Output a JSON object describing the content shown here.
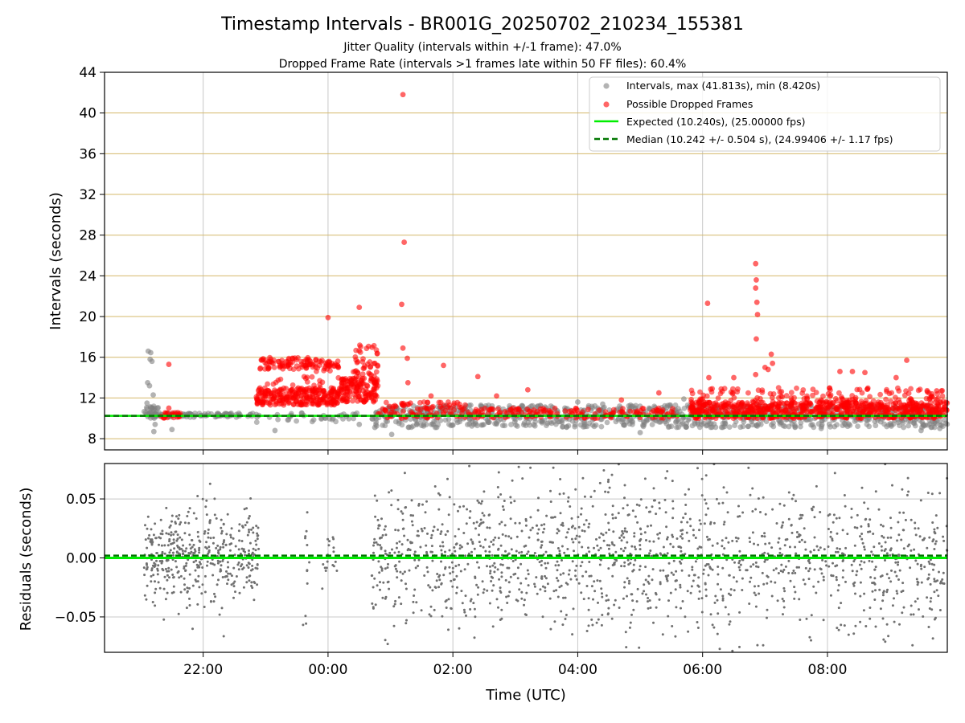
{
  "figure": {
    "title": "Timestamp Intervals - BR001G_20250702_210234_155381",
    "subtitle_1": "Jitter Quality (intervals within +/-1 frame): 47.0%",
    "subtitle_2": "Dropped Frame Rate (intervals >1 frames late within 50 FF files): 60.4%"
  },
  "colors": {
    "intervals": "#808080",
    "dropped": "#ff0000",
    "expected": "#00ee00",
    "median": "#007700",
    "hgrid": "#d4b86a",
    "vgrid": "#c8c8c8",
    "residual_points": "#707070"
  },
  "chart_data": [
    {
      "type": "scatter",
      "ylabel": "Intervals (seconds)",
      "x_range_hours": [
        20.42,
        33.92
      ],
      "ylim": [
        6.9,
        44
      ],
      "yticks": [
        8,
        12,
        16,
        20,
        24,
        28,
        32,
        36,
        40,
        44
      ],
      "ytick_labels": [
        "8",
        "12",
        "16",
        "20",
        "24",
        "28",
        "32",
        "36",
        "40",
        "44"
      ],
      "xtick_hours": [
        22,
        24,
        26,
        28,
        30,
        32
      ],
      "grid": "horizontal lines at y ticks, vertical lines at x ticks",
      "legend_position": "top-right",
      "legend": [
        "Intervals, max (41.813s), min (8.420s)",
        "Possible Dropped Frames",
        "Expected (10.240s), (25.00000 fps)",
        "Median (10.242 +/- 0.504 s), (24.99406 +/- 1.17 fps)"
      ],
      "expected_y": 10.24,
      "median_y": 10.242,
      "outlier_points": [
        {
          "x": 21.12,
          "y": 16.6
        },
        {
          "x": 21.16,
          "y": 16.45
        },
        {
          "x": 21.15,
          "y": 15.8
        },
        {
          "x": 21.18,
          "y": 15.6
        },
        {
          "x": 21.11,
          "y": 13.5
        },
        {
          "x": 21.14,
          "y": 13.2
        },
        {
          "x": 21.2,
          "y": 12.3
        },
        {
          "x": 21.1,
          "y": 11.5
        },
        {
          "x": 21.23,
          "y": 9.4
        },
        {
          "x": 21.21,
          "y": 8.7
        },
        {
          "x": 21.5,
          "y": 8.9
        },
        {
          "x": 23.15,
          "y": 8.8
        },
        {
          "x": 24.5,
          "y": 9.4
        },
        {
          "x": 24.75,
          "y": 9.1
        },
        {
          "x": 25.02,
          "y": 8.42
        },
        {
          "x": 25.5,
          "y": 9.3
        },
        {
          "x": 26.8,
          "y": 9.3
        },
        {
          "x": 28.0,
          "y": 11.6
        },
        {
          "x": 28.4,
          "y": 11.4
        },
        {
          "x": 29.0,
          "y": 8.6
        },
        {
          "x": 29.7,
          "y": 11.9
        },
        {
          "x": 30.9,
          "y": 10.8
        },
        {
          "x": 31.9,
          "y": 9.0
        },
        {
          "x": 33.5,
          "y": 8.8
        },
        {
          "x": 33.8,
          "y": 9.0
        }
      ],
      "dropped_outliers": [
        {
          "x": 25.2,
          "y": 41.81
        },
        {
          "x": 25.22,
          "y": 27.3
        },
        {
          "x": 25.18,
          "y": 21.2
        },
        {
          "x": 25.2,
          "y": 16.9
        },
        {
          "x": 25.27,
          "y": 15.9
        },
        {
          "x": 24.0,
          "y": 19.9
        },
        {
          "x": 24.5,
          "y": 20.9
        },
        {
          "x": 30.08,
          "y": 21.3
        },
        {
          "x": 30.85,
          "y": 25.2
        },
        {
          "x": 30.86,
          "y": 23.6
        },
        {
          "x": 30.85,
          "y": 22.8
        },
        {
          "x": 30.87,
          "y": 21.4
        },
        {
          "x": 30.88,
          "y": 20.2
        },
        {
          "x": 30.86,
          "y": 17.8
        },
        {
          "x": 31.0,
          "y": 15.0
        },
        {
          "x": 31.05,
          "y": 14.8
        },
        {
          "x": 31.1,
          "y": 16.3
        },
        {
          "x": 31.12,
          "y": 15.4
        },
        {
          "x": 30.85,
          "y": 14.3
        },
        {
          "x": 30.5,
          "y": 14.0
        },
        {
          "x": 30.1,
          "y": 14.0
        },
        {
          "x": 26.4,
          "y": 14.1
        },
        {
          "x": 25.85,
          "y": 15.2
        },
        {
          "x": 25.65,
          "y": 12.2
        },
        {
          "x": 21.45,
          "y": 15.3
        },
        {
          "x": 21.45,
          "y": 11.0
        },
        {
          "x": 32.2,
          "y": 14.6
        },
        {
          "x": 32.4,
          "y": 14.6
        },
        {
          "x": 32.6,
          "y": 14.5
        },
        {
          "x": 33.1,
          "y": 14.0
        },
        {
          "x": 33.27,
          "y": 15.7
        },
        {
          "x": 33.6,
          "y": 12.6
        },
        {
          "x": 33.75,
          "y": 12.7
        },
        {
          "x": 28.7,
          "y": 11.8
        },
        {
          "x": 29.3,
          "y": 12.5
        },
        {
          "x": 27.2,
          "y": 12.8
        },
        {
          "x": 26.7,
          "y": 12.2
        },
        {
          "x": 25.28,
          "y": 13.5
        },
        {
          "x": 25.32,
          "y": 11.5
        },
        {
          "x": 24.75,
          "y": 15.4
        }
      ],
      "interval_clusters": [
        {
          "x_start": 21.05,
          "x_end": 21.3,
          "y_min": 10.0,
          "y_max": 11.2,
          "count": 40,
          "dropped": false
        },
        {
          "x_start": 21.3,
          "x_end": 22.9,
          "y_min": 10.1,
          "y_max": 10.5,
          "count": 80,
          "dropped": false
        },
        {
          "x_start": 21.3,
          "x_end": 21.7,
          "y_min": 10.0,
          "y_max": 10.6,
          "count": 25,
          "dropped": true
        },
        {
          "x_start": 22.85,
          "x_end": 24.2,
          "y_min": 11.3,
          "y_max": 13.0,
          "count": 260,
          "dropped": true
        },
        {
          "x_start": 22.9,
          "x_end": 23.7,
          "y_min": 14.8,
          "y_max": 16.0,
          "count": 70,
          "dropped": true
        },
        {
          "x_start": 23.7,
          "x_end": 24.2,
          "y_min": 14.6,
          "y_max": 15.8,
          "count": 40,
          "dropped": true
        },
        {
          "x_start": 24.2,
          "x_end": 24.8,
          "y_min": 11.6,
          "y_max": 14.0,
          "count": 120,
          "dropped": true
        },
        {
          "x_start": 24.4,
          "x_end": 24.8,
          "y_min": 14.0,
          "y_max": 17.2,
          "count": 40,
          "dropped": true
        },
        {
          "x_start": 23.0,
          "x_end": 24.8,
          "y_min": 13.0,
          "y_max": 14.2,
          "count": 40,
          "dropped": true
        },
        {
          "x_start": 22.85,
          "x_end": 24.8,
          "y_min": 9.6,
          "y_max": 10.6,
          "count": 40,
          "dropped": false
        },
        {
          "x_start": 24.75,
          "x_end": 33.92,
          "y_min": 9.1,
          "y_max": 11.3,
          "count": 900,
          "dropped": false
        },
        {
          "x_start": 24.8,
          "x_end": 26.2,
          "y_min": 10.0,
          "y_max": 11.6,
          "count": 90,
          "dropped": true
        },
        {
          "x_start": 26.2,
          "x_end": 29.6,
          "y_min": 10.0,
          "y_max": 11.0,
          "count": 160,
          "dropped": true
        },
        {
          "x_start": 29.8,
          "x_end": 33.92,
          "y_min": 10.0,
          "y_max": 11.6,
          "count": 700,
          "dropped": true
        },
        {
          "x_start": 29.8,
          "x_end": 33.92,
          "y_min": 11.5,
          "y_max": 13.0,
          "count": 140,
          "dropped": true
        }
      ]
    },
    {
      "type": "scatter",
      "xlabel": "Time (UTC)",
      "ylabel": "Residuals (seconds)",
      "x_range_hours": [
        20.42,
        33.92
      ],
      "ylim": [
        -0.08,
        0.08
      ],
      "yticks": [
        -0.05,
        0.0,
        0.05
      ],
      "ytick_labels": [
        "−0.05",
        "0.00",
        "0.05"
      ],
      "xtick_hours": [
        22,
        24,
        26,
        28,
        30,
        32
      ],
      "xtick_labels": [
        "22:00",
        "00:00",
        "02:00",
        "04:00",
        "06:00",
        "08:00"
      ],
      "grid": "both",
      "expected_y": 0.0,
      "median_y": 0.002,
      "residual_clusters": [
        {
          "x_start": 21.05,
          "x_end": 22.9,
          "y_mean": 0.0,
          "y_sd": 0.02,
          "count": 450
        },
        {
          "x_start": 23.6,
          "x_end": 23.7,
          "y_mean": 0.0,
          "y_sd": 0.03,
          "count": 12
        },
        {
          "x_start": 23.9,
          "x_end": 24.15,
          "y_mean": 0.0,
          "y_sd": 0.015,
          "count": 20
        },
        {
          "x_start": 24.7,
          "x_end": 33.92,
          "y_mean": 0.0,
          "y_sd": 0.032,
          "count": 1500
        }
      ]
    }
  ]
}
